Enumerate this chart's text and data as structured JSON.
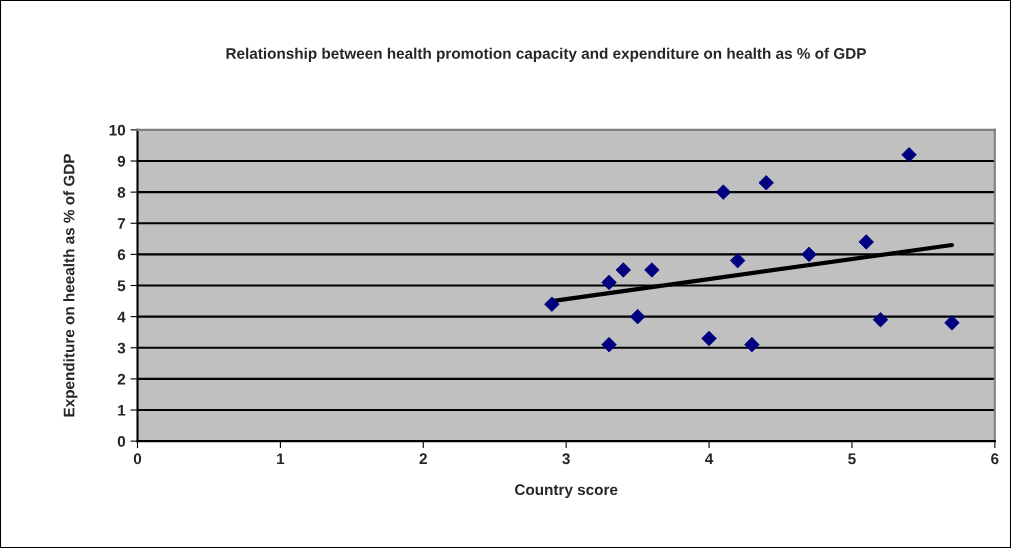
{
  "chart_data": {
    "type": "scatter",
    "title": "Relationship between health promotion capacity and expenditure on health as % of GDP",
    "xlabel": "Country score",
    "ylabel": "Expenditure on heealth as % of GDP",
    "series": [
      {
        "color": "#000080",
        "marker": "diamond",
        "x": [
          2.9,
          3.3,
          3.3,
          3.4,
          3.5,
          3.6,
          4.0,
          4.1,
          4.2,
          4.3,
          4.4,
          4.7,
          5.1,
          5.2,
          5.4,
          5.7
        ],
        "values": [
          4.4,
          5.1,
          3.1,
          5.5,
          4.0,
          5.5,
          3.3,
          8.0,
          5.8,
          3.1,
          8.3,
          6.0,
          6.4,
          3.9,
          9.2,
          3.8
        ]
      },
      {
        "type": "line",
        "color": "#000000",
        "marker": "none",
        "line_style": "solid",
        "x": [
          2.9,
          5.7
        ],
        "values": [
          4.5,
          6.3
        ]
      }
    ],
    "xlim": [
      0,
      6
    ],
    "xticks": [
      0,
      1,
      2,
      3,
      4,
      5,
      6
    ],
    "ylim": [
      0,
      10
    ],
    "yticks": [
      0,
      1,
      2,
      3,
      4,
      5,
      6,
      7,
      8,
      9,
      10
    ],
    "grid": "y",
    "legend": false
  }
}
